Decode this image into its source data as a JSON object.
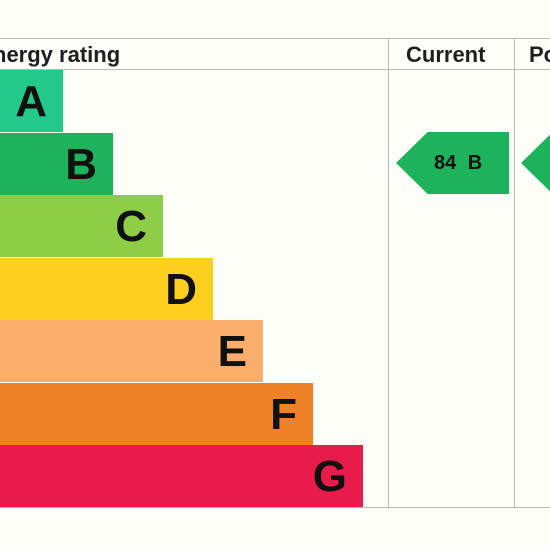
{
  "header": {
    "title": "nergy rating",
    "current_label": "Current",
    "potential_label": "Po"
  },
  "chart_data": {
    "type": "bar",
    "categories": [
      "A",
      "B",
      "C",
      "D",
      "E",
      "F",
      "G"
    ],
    "colors": [
      "#23c98a",
      "#1db35c",
      "#8dce46",
      "#fdd01f",
      "#f9ae6c",
      "#ef8127",
      "#e81b4a"
    ],
    "current": {
      "value": 84,
      "band": "B",
      "label": "84  B",
      "color": "#1db35c"
    },
    "potential": {
      "color": "#1db35c"
    }
  }
}
